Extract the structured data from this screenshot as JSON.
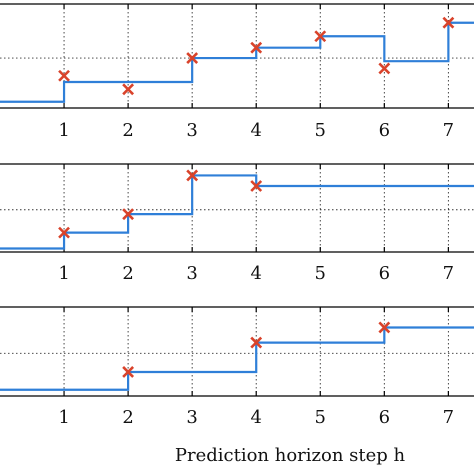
{
  "chart_data": [
    {
      "type": "line",
      "step": "post",
      "xlabel": "",
      "x_ticks": [
        1,
        2,
        3,
        4,
        5,
        6,
        7
      ],
      "grid": true,
      "x_range": [
        0,
        7.4
      ],
      "y_range": [
        0,
        1
      ],
      "series": [
        {
          "line_color": "#2f7fd8",
          "steps": [
            [
              0,
              0.06
            ],
            [
              1,
              0.25
            ],
            [
              2,
              0.25
            ],
            [
              3,
              0.48
            ],
            [
              4,
              0.58
            ],
            [
              5,
              0.69
            ],
            [
              6,
              0.45
            ],
            [
              7,
              0.82
            ]
          ],
          "markers": [
            [
              1,
              0.31
            ],
            [
              2,
              0.18
            ],
            [
              3,
              0.48
            ],
            [
              4,
              0.58
            ],
            [
              5,
              0.69
            ],
            [
              6,
              0.38
            ],
            [
              7,
              0.82
            ]
          ],
          "marker_color": "#d9432b"
        }
      ]
    },
    {
      "type": "line",
      "step": "post",
      "xlabel": "",
      "x_ticks": [
        1,
        2,
        3,
        4,
        5,
        6,
        7
      ],
      "grid": true,
      "x_range": [
        0,
        7.4
      ],
      "y_range": [
        0,
        1
      ],
      "series": [
        {
          "line_color": "#2f7fd8",
          "steps": [
            [
              0,
              0.04
            ],
            [
              1,
              0.22
            ],
            [
              2,
              0.43
            ],
            [
              3,
              0.87
            ],
            [
              4,
              0.75
            ]
          ],
          "markers": [
            [
              1,
              0.22
            ],
            [
              2,
              0.43
            ],
            [
              3,
              0.87
            ],
            [
              4,
              0.75
            ]
          ],
          "marker_color": "#d9432b"
        }
      ]
    },
    {
      "type": "line",
      "step": "post",
      "xlabel": "Prediction horizon step h",
      "x_ticks": [
        1,
        2,
        3,
        4,
        5,
        6,
        7
      ],
      "grid": true,
      "x_range": [
        0,
        7.4
      ],
      "y_range": [
        0,
        1
      ],
      "series": [
        {
          "line_color": "#2f7fd8",
          "steps": [
            [
              0,
              0.07
            ],
            [
              2,
              0.27
            ],
            [
              4,
              0.6
            ],
            [
              6,
              0.77
            ]
          ],
          "markers": [
            [
              2,
              0.27
            ],
            [
              4,
              0.6
            ],
            [
              6,
              0.77
            ]
          ],
          "marker_color": "#d9432b"
        }
      ]
    }
  ]
}
